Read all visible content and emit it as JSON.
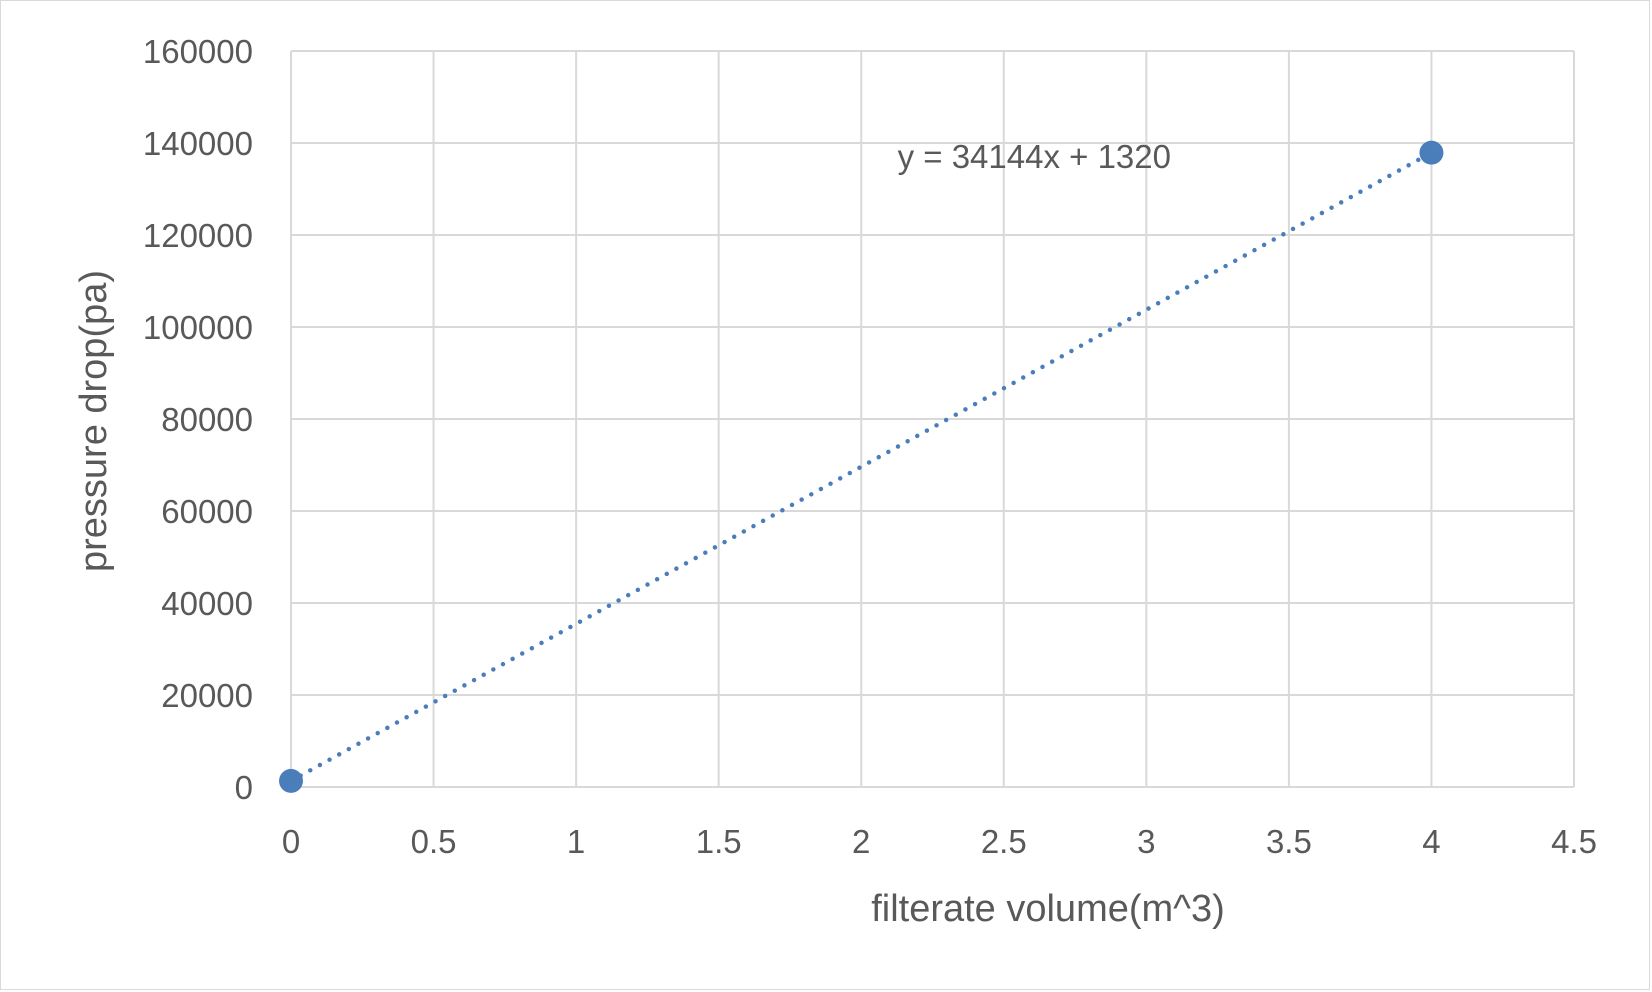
{
  "chart_data": {
    "type": "scatter",
    "title": "",
    "xlabel": "filterate volume(m^3)",
    "ylabel": "pressure drop(pa)",
    "xlim": [
      0,
      4.5
    ],
    "ylim": [
      0,
      160000
    ],
    "x_ticks": [
      0,
      0.5,
      1,
      1.5,
      2,
      2.5,
      3,
      3.5,
      4,
      4.5
    ],
    "x_tick_labels": [
      "0",
      "0.5",
      "1",
      "1.5",
      "2",
      "2.5",
      "3",
      "3.5",
      "4",
      "4.5"
    ],
    "y_ticks": [
      0,
      20000,
      40000,
      60000,
      80000,
      100000,
      120000,
      140000,
      160000
    ],
    "y_tick_labels": [
      "0",
      "20000",
      "40000",
      "60000",
      "80000",
      "100000",
      "120000",
      "140000",
      "160000"
    ],
    "grid": true,
    "series": [
      {
        "x": [
          0,
          4
        ],
        "y": [
          1320,
          137896
        ],
        "color": "#4a7ebb",
        "marker": "circle"
      }
    ],
    "trendline": {
      "type": "linear",
      "slope": 34144,
      "intercept": 1320,
      "style": "dotted",
      "color": "#4a7ebb",
      "x_range": [
        0,
        4
      ],
      "equation_label": "y = 34144x + 1320",
      "equation_anchor": [
        2.8,
        137000
      ]
    },
    "colors": {
      "grid": "#d9d9d9",
      "text": "#595959",
      "border": "#d9d9d9"
    }
  }
}
